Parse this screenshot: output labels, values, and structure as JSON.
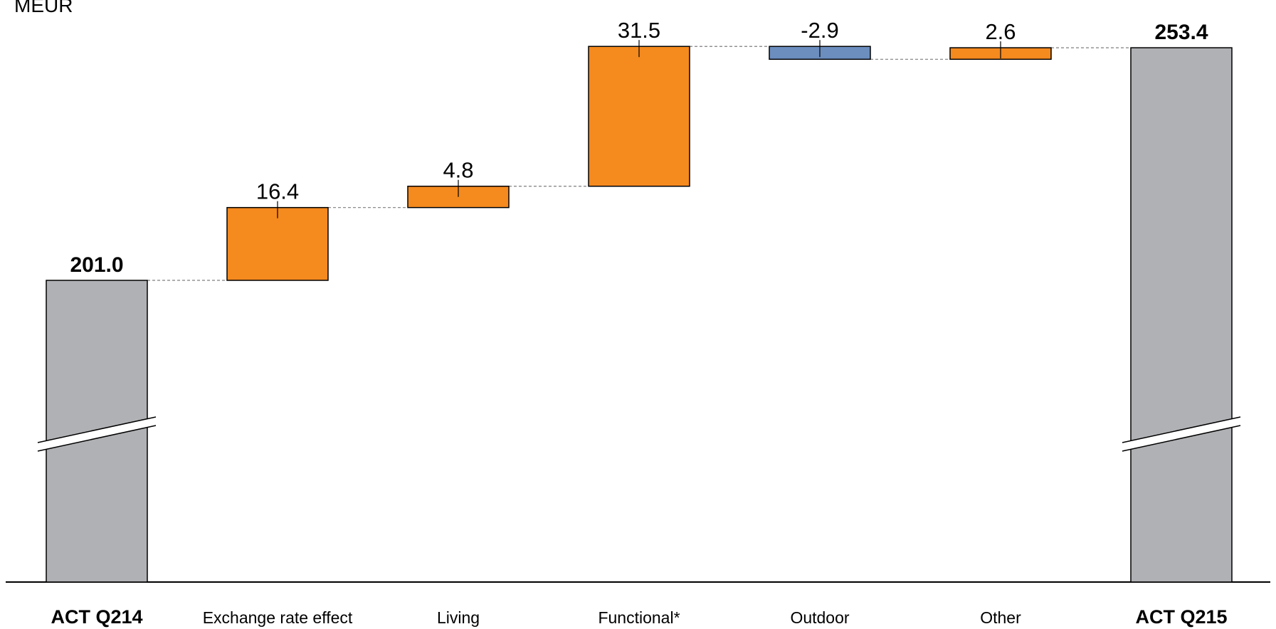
{
  "chart_data": {
    "type": "waterfall",
    "unit": "MEUR",
    "categories": [
      "ACT Q214",
      "Exchange rate effect",
      "Living",
      "Functional*",
      "Outdoor",
      "Other",
      "ACT Q215"
    ],
    "values": [
      201.0,
      16.4,
      4.8,
      31.5,
      -2.9,
      2.6,
      253.4
    ],
    "value_labels": [
      "201.0",
      "16.4",
      "4.8",
      "31.5",
      "-2.9",
      "2.6",
      "253.4"
    ],
    "kinds": [
      "total",
      "delta",
      "delta",
      "delta",
      "delta",
      "delta",
      "total"
    ],
    "axis_break": true,
    "colors": {
      "total": "#B0B1B4",
      "increase": "#F58A1F",
      "decrease": "#6C8EBF",
      "outline": "#000000",
      "connector": "#7F7F7F"
    }
  }
}
